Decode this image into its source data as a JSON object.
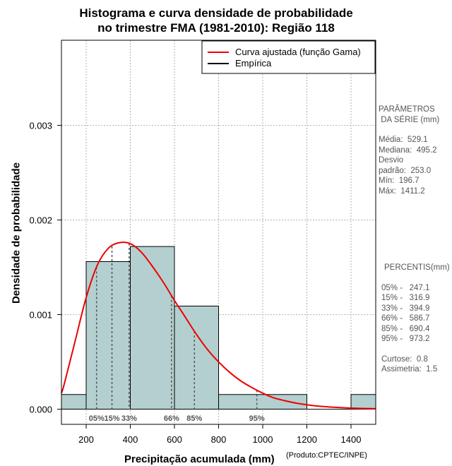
{
  "chart_data": {
    "type": "histogram",
    "title": [
      "Histograma e curva densidade de probabilidade",
      "no trimestre FMA (1981-2010): Região 118"
    ],
    "xlabel": "Precipitação acumulada (mm)",
    "ylabel": "Densidade de probabilidade",
    "credit": "(Produto:CPTEC/INPE)",
    "xlim": [
      88,
      1512
    ],
    "ylim": [
      -0.00016,
      0.0039
    ],
    "xticks": [
      200,
      400,
      600,
      800,
      1000,
      1200,
      1400
    ],
    "xtick_labels": [
      "200",
      "400",
      "600",
      "800",
      "1000",
      "1200",
      "1400"
    ],
    "yticks": [
      0.0,
      0.001,
      0.002,
      0.003
    ],
    "ytick_labels": [
      "0.000",
      "0.001",
      "0.002",
      "0.003"
    ],
    "grid": true,
    "bins": [
      {
        "x0": 88,
        "x1": 200,
        "density": 0.000155
      },
      {
        "x0": 200,
        "x1": 400,
        "density": 0.00156
      },
      {
        "x0": 400,
        "x1": 600,
        "density": 0.00172
      },
      {
        "x0": 600,
        "x1": 800,
        "density": 0.00109
      },
      {
        "x0": 800,
        "x1": 1200,
        "density": 0.000155
      },
      {
        "x0": 1200,
        "x1": 1400,
        "density": 0.0
      },
      {
        "x0": 1400,
        "x1": 1512,
        "density": 0.000155
      }
    ],
    "fitted_curve": {
      "name": "Curva ajustada (função Gama)",
      "color": "#ee0000",
      "x": [
        88,
        100,
        150,
        200,
        250,
        300,
        350,
        400,
        450,
        500,
        550,
        600,
        650,
        700,
        750,
        800,
        850,
        900,
        950,
        1000,
        1050,
        1100,
        1150,
        1200,
        1250,
        1300,
        1350,
        1400,
        1450,
        1512
      ],
      "y": [
        0.00017,
        0.00026,
        0.00072,
        0.00118,
        0.00152,
        0.0017,
        0.00176,
        0.00175,
        0.00166,
        0.00151,
        0.00134,
        0.00115,
        0.00097,
        0.00079,
        0.00063,
        0.0005,
        0.00039,
        0.0003,
        0.00023,
        0.00017,
        0.00012,
        9e-05,
        6.5e-05,
        4.7e-05,
        3.3e-05,
        2.4e-05,
        1.7e-05,
        1.2e-05,
        8e-06,
        5e-06
      ]
    },
    "empirical": {
      "name": "Empírica",
      "color": "#000000"
    },
    "percentile_markers": [
      {
        "label": "05%",
        "x": 247.1
      },
      {
        "label": "15%",
        "x": 316.9
      },
      {
        "label": "33%",
        "x": 394.9
      },
      {
        "label": "66%",
        "x": 586.7
      },
      {
        "label": "85%",
        "x": 690.4
      },
      {
        "label": "95%",
        "x": 973.2
      }
    ],
    "legend_position": "top-right",
    "colors": {
      "bar_fill": "#b4cfcf",
      "curve": "#ee0000",
      "grid": "#b0b0b0",
      "marker": "#555555"
    }
  },
  "side_panel": {
    "params_heading": [
      "PARÂMETROS",
      " DA SÉRIE (mm)"
    ],
    "params": [
      "Média:  529.1",
      "Mediana:  495.2",
      "Desvio",
      "padrão:  253.0",
      "Mín:  196.7",
      "Máx:  1411.2"
    ],
    "percentis_heading": "PERCENTIS(mm)",
    "percentis": [
      "05% -   247.1",
      "15% -   316.9",
      "33% -   394.9",
      "66% -   586.7",
      "85% -   690.4",
      "95% -   973.2"
    ],
    "stats": [
      "Curtose:  0.8",
      "Assimetria:  1.5"
    ]
  }
}
